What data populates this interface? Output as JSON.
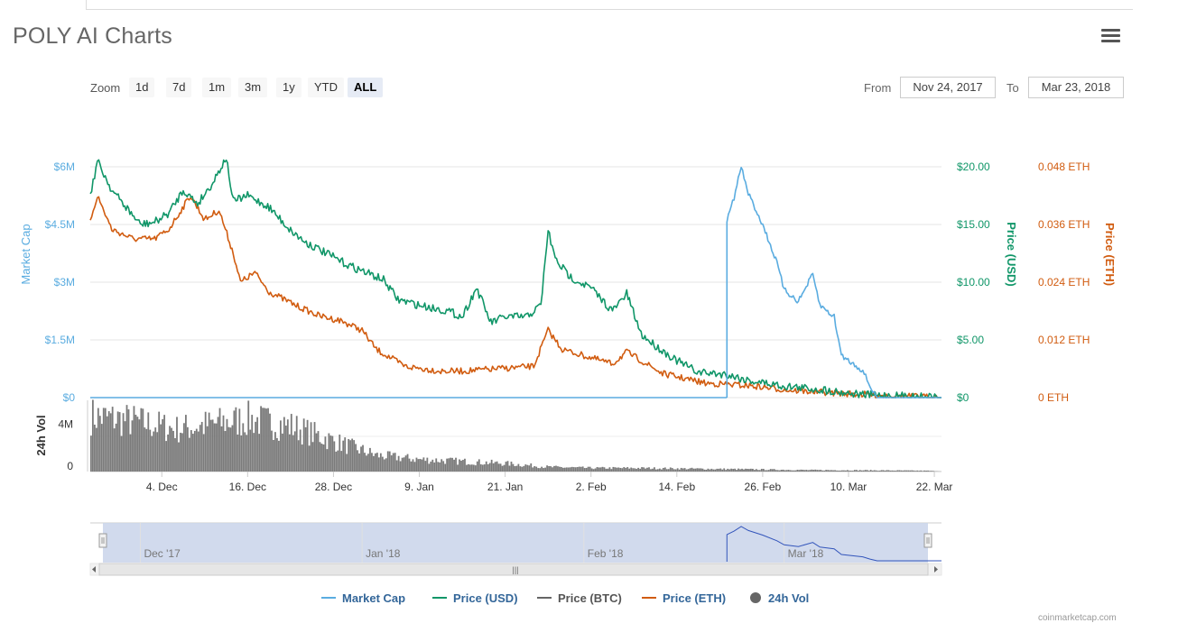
{
  "header": {
    "title": "POLY AI Charts",
    "menu_icon": "hamburger-menu-icon"
  },
  "toolbar": {
    "zoom_label": "Zoom",
    "zoom_buttons": [
      "1d",
      "7d",
      "1m",
      "3m",
      "1y",
      "YTD",
      "ALL"
    ],
    "active_zoom": "ALL",
    "from_label": "From",
    "from_value": "Nov 24, 2017",
    "to_label": "To",
    "to_value": "Mar 23, 2018"
  },
  "colors": {
    "market_cap": "#5aace0",
    "price_usd": "#109668",
    "price_btc": "#666666",
    "price_eth": "#d15c10",
    "volume": "#7a7a7a"
  },
  "chart_data": {
    "type": "line",
    "x_range": [
      "2017-11-24",
      "2018-03-23"
    ],
    "x_tick_labels": [
      "4. Dec",
      "16. Dec",
      "28. Dec",
      "9. Jan",
      "21. Jan",
      "2. Feb",
      "14. Feb",
      "26. Feb",
      "10. Mar",
      "22. Mar"
    ],
    "axes": {
      "market_cap": {
        "label": "Market Cap",
        "ticks": [
          "$0",
          "$1.5M",
          "$3M",
          "$4.5M",
          "$6M"
        ],
        "range": [
          0,
          6000000
        ]
      },
      "price_usd": {
        "label": "Price (USD)",
        "ticks": [
          "$0",
          "$5.00",
          "$10.00",
          "$15.00",
          "$20.00"
        ],
        "range": [
          0,
          20
        ]
      },
      "price_eth": {
        "label": "Price (ETH)",
        "ticks": [
          "0 ETH",
          "0.012 ETH",
          "0.024 ETH",
          "0.036 ETH",
          "0.048 ETH"
        ],
        "range": [
          0,
          0.048
        ]
      },
      "volume": {
        "label": "24h Vol",
        "ticks": [
          "0",
          "4M"
        ],
        "range": [
          0,
          6000000
        ]
      }
    },
    "series": [
      {
        "name": "Market Cap",
        "axis": "market_cap",
        "points": [
          [
            "2018-02-21",
            0
          ],
          [
            "2018-02-21",
            4600000
          ],
          [
            "2018-02-22",
            5200000
          ],
          [
            "2018-02-23",
            6000000
          ],
          [
            "2018-02-24",
            5300000
          ],
          [
            "2018-02-26",
            4500000
          ],
          [
            "2018-02-28",
            3500000
          ],
          [
            "2018-03-01",
            2800000
          ],
          [
            "2018-03-03",
            2500000
          ],
          [
            "2018-03-05",
            3200000
          ],
          [
            "2018-03-06",
            2400000
          ],
          [
            "2018-03-08",
            2100000
          ],
          [
            "2018-03-09",
            1100000
          ],
          [
            "2018-03-12",
            700000
          ],
          [
            "2018-03-13",
            300000
          ],
          [
            "2018-03-14",
            0
          ],
          [
            "2018-03-23",
            0
          ]
        ]
      },
      {
        "name": "Price (USD)",
        "axis": "price_usd",
        "points": [
          [
            "2017-11-24",
            17.5
          ],
          [
            "2017-11-25",
            20.5
          ],
          [
            "2017-11-27",
            18
          ],
          [
            "2017-11-29",
            16.5
          ],
          [
            "2017-12-01",
            15
          ],
          [
            "2017-12-03",
            15.2
          ],
          [
            "2017-12-05",
            16
          ],
          [
            "2017-12-07",
            18
          ],
          [
            "2017-12-09",
            16.8
          ],
          [
            "2017-12-11",
            18.5
          ],
          [
            "2017-12-13",
            20.8
          ],
          [
            "2017-12-14",
            17
          ],
          [
            "2017-12-16",
            17.5
          ],
          [
            "2017-12-19",
            16.5
          ],
          [
            "2017-12-22",
            14.5
          ],
          [
            "2017-12-24",
            13.5
          ],
          [
            "2017-12-27",
            12.5
          ],
          [
            "2017-12-30",
            11.5
          ],
          [
            "2018-01-01",
            11
          ],
          [
            "2018-01-04",
            10.2
          ],
          [
            "2018-01-06",
            8.5
          ],
          [
            "2018-01-09",
            8
          ],
          [
            "2018-01-13",
            7.5
          ],
          [
            "2018-01-15",
            7
          ],
          [
            "2018-01-17",
            9.5
          ],
          [
            "2018-01-19",
            6.5
          ],
          [
            "2018-01-21",
            7
          ],
          [
            "2018-01-24",
            7
          ],
          [
            "2018-01-26",
            8
          ],
          [
            "2018-01-27",
            14.5
          ],
          [
            "2018-01-28",
            12
          ],
          [
            "2018-01-30",
            10.5
          ],
          [
            "2018-02-02",
            9.5
          ],
          [
            "2018-02-05",
            7.5
          ],
          [
            "2018-02-07",
            9
          ],
          [
            "2018-02-09",
            5.5
          ],
          [
            "2018-02-11",
            4.5
          ],
          [
            "2018-02-14",
            3.2
          ],
          [
            "2018-02-17",
            2.2
          ],
          [
            "2018-02-21",
            2
          ],
          [
            "2018-02-24",
            1.5
          ],
          [
            "2018-03-01",
            1
          ],
          [
            "2018-03-06",
            0.7
          ],
          [
            "2018-03-12",
            0.25
          ],
          [
            "2018-03-23",
            0
          ]
        ]
      },
      {
        "name": "Price (ETH)",
        "axis": "price_eth",
        "points": [
          [
            "2017-11-24",
            0.037
          ],
          [
            "2017-11-25",
            0.042
          ],
          [
            "2017-11-27",
            0.035
          ],
          [
            "2017-11-30",
            0.033
          ],
          [
            "2017-12-03",
            0.033
          ],
          [
            "2017-12-05",
            0.035
          ],
          [
            "2017-12-08",
            0.042
          ],
          [
            "2017-12-10",
            0.037
          ],
          [
            "2017-12-12",
            0.039
          ],
          [
            "2017-12-14",
            0.03
          ],
          [
            "2017-12-15",
            0.024
          ],
          [
            "2017-12-17",
            0.026
          ],
          [
            "2017-12-19",
            0.022
          ],
          [
            "2017-12-23",
            0.019
          ],
          [
            "2017-12-26",
            0.017
          ],
          [
            "2017-12-29",
            0.016
          ],
          [
            "2018-01-01",
            0.014
          ],
          [
            "2018-01-03",
            0.01
          ],
          [
            "2018-01-07",
            0.0065
          ],
          [
            "2018-01-12",
            0.0055
          ],
          [
            "2018-01-15",
            0.0055
          ],
          [
            "2018-01-20",
            0.006
          ],
          [
            "2018-01-25",
            0.0065
          ],
          [
            "2018-01-27",
            0.014
          ],
          [
            "2018-01-29",
            0.01
          ],
          [
            "2018-02-05",
            0.007
          ],
          [
            "2018-02-07",
            0.0095
          ],
          [
            "2018-02-12",
            0.005
          ],
          [
            "2018-02-18",
            0.003
          ],
          [
            "2018-02-24",
            0.0025
          ],
          [
            "2018-03-02",
            0.0015
          ],
          [
            "2018-03-10",
            0.0008
          ],
          [
            "2018-03-23",
            0
          ]
        ]
      },
      {
        "name": "Price (BTC)",
        "axis": "price_usd",
        "points": []
      }
    ],
    "volume_profile": [
      [
        0,
        5500000
      ],
      [
        6,
        5000000
      ],
      [
        12,
        4200000
      ],
      [
        18,
        4800000
      ],
      [
        22,
        5200000
      ],
      [
        28,
        4500000
      ],
      [
        34,
        3000000
      ],
      [
        40,
        1600000
      ],
      [
        46,
        1200000
      ],
      [
        52,
        1000000
      ],
      [
        58,
        800000
      ],
      [
        64,
        450000
      ],
      [
        70,
        350000
      ],
      [
        76,
        350000
      ],
      [
        82,
        300000
      ],
      [
        88,
        250000
      ],
      [
        92,
        220000
      ],
      [
        100,
        150000
      ],
      [
        110,
        120000
      ],
      [
        117,
        80000
      ],
      [
        119,
        0
      ]
    ],
    "legend": [
      "Market Cap",
      "Price (USD)",
      "Price (BTC)",
      "Price (ETH)",
      "24h Vol"
    ],
    "legend_position": "bottom-center",
    "grid": true
  },
  "navigator": {
    "month_labels": [
      "Dec '17",
      "Jan '18",
      "Feb '18",
      "Mar '18"
    ],
    "scroll_handle": "|||"
  },
  "footer": {
    "credit": "coinmarketcap.com"
  }
}
